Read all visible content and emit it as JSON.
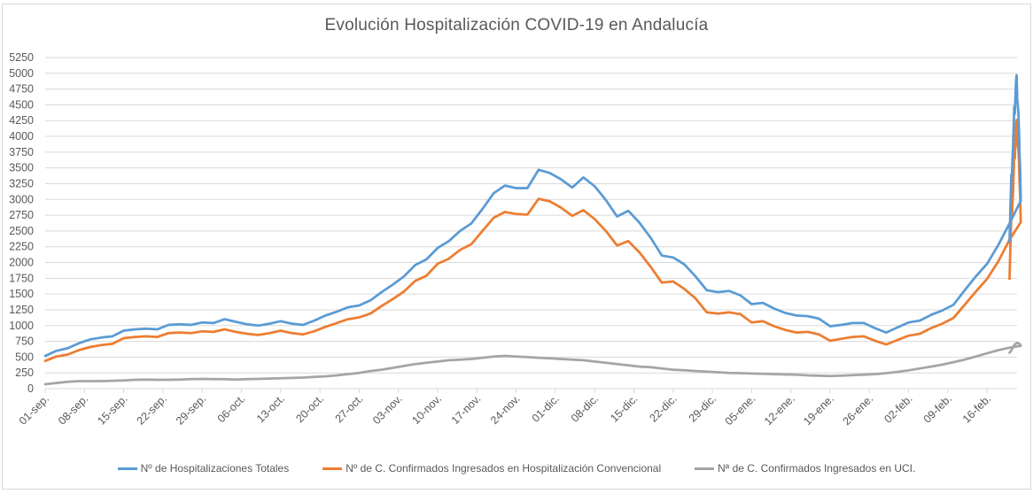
{
  "chart_data": {
    "type": "line",
    "title": "Evolución Hospitalización COVID-19 en Andalucía",
    "xlabel": "",
    "ylabel": "",
    "ylim": [
      0,
      5250
    ],
    "yticks": [
      0,
      250,
      500,
      750,
      1000,
      1250,
      1500,
      1750,
      2000,
      2250,
      2500,
      2750,
      3000,
      3250,
      3500,
      3750,
      4000,
      4250,
      4500,
      4750,
      5000,
      5250
    ],
    "grid": true,
    "legend_position": "bottom",
    "x_start": "01-sep.",
    "x_step_days": 2,
    "x_tick_labels": [
      "01-sep.",
      "08-sep.",
      "15-sep.",
      "22-sep.",
      "29-sep.",
      "06-oct.",
      "13-oct.",
      "20-oct.",
      "27-oct.",
      "03-nov.",
      "10-nov.",
      "17-nov.",
      "24-nov.",
      "01-dic.",
      "08-dic.",
      "15-dic.",
      "22-dic.",
      "29-dic.",
      "05-ene.",
      "12-ene.",
      "19-ene.",
      "26-ene.",
      "02-feb.",
      "09-feb.",
      "16-feb."
    ],
    "total_days": 173,
    "series": [
      {
        "name": "Nº de Hospitalizaciones Totales",
        "color": "#5b9bd5",
        "values": [
          520,
          600,
          640,
          720,
          780,
          810,
          830,
          920,
          940,
          950,
          940,
          1010,
          1020,
          1010,
          1050,
          1040,
          1100,
          1060,
          1020,
          1000,
          1030,
          1070,
          1030,
          1010,
          1080,
          1160,
          1220,
          1290,
          1320,
          1400,
          1530,
          1650,
          1780,
          1960,
          2050,
          2230,
          2340,
          2500,
          2620,
          2850,
          3100,
          3220,
          3180,
          3180,
          3470,
          3420,
          3320,
          3190,
          3350,
          3210,
          2990,
          2730,
          2820,
          2630,
          2390,
          2110,
          2080,
          1970,
          1780,
          1560,
          1530,
          1550,
          1480,
          1340,
          1360,
          1270,
          1200,
          1160,
          1150,
          1110,
          990,
          1010,
          1040,
          1040,
          960,
          890,
          970,
          1050,
          1080,
          1170,
          1240,
          1330,
          1560,
          1780,
          1980,
          2280,
          2620,
          2980
        ],
        "values_tail": [
          3500,
          3720,
          4090,
          4380,
          4500,
          4590,
          4970,
          4870,
          4650,
          4360,
          4470,
          4150,
          3850,
          3620,
          3380,
          3390,
          3000,
          2700,
          2330
        ]
      },
      {
        "name": "Nº de C. Confirmados Ingresados en Hospitalización Convencional",
        "color": "#ed7d31",
        "values": [
          440,
          510,
          540,
          610,
          660,
          690,
          710,
          800,
          820,
          830,
          820,
          880,
          890,
          880,
          910,
          900,
          940,
          900,
          870,
          850,
          880,
          920,
          880,
          860,
          910,
          980,
          1040,
          1100,
          1130,
          1190,
          1310,
          1420,
          1540,
          1710,
          1790,
          1980,
          2060,
          2200,
          2290,
          2500,
          2710,
          2800,
          2770,
          2760,
          3010,
          2970,
          2870,
          2740,
          2830,
          2690,
          2500,
          2270,
          2340,
          2160,
          1930,
          1680,
          1700,
          1580,
          1430,
          1210,
          1190,
          1210,
          1180,
          1050,
          1070,
          990,
          930,
          890,
          900,
          860,
          760,
          790,
          820,
          830,
          760,
          700,
          770,
          840,
          870,
          960,
          1030,
          1120,
          1330,
          1540,
          1740,
          2020,
          2360,
          2640
        ],
        "values_tail": [
          3050,
          3270,
          3580,
          3790,
          3840,
          3900,
          4260,
          4170,
          3990,
          3650,
          3770,
          3420,
          3140,
          2930,
          2700,
          2720,
          2420,
          2110,
          1740
        ]
      },
      {
        "name": "Nª de C. Confirmados Ingresados en UCI.",
        "color": "#a5a5a5",
        "values": [
          70,
          90,
          110,
          120,
          120,
          120,
          125,
          130,
          140,
          145,
          140,
          140,
          145,
          150,
          155,
          150,
          150,
          145,
          150,
          155,
          160,
          165,
          170,
          175,
          185,
          195,
          210,
          230,
          250,
          280,
          300,
          330,
          360,
          390,
          410,
          430,
          450,
          460,
          470,
          490,
          510,
          520,
          510,
          500,
          490,
          480,
          470,
          460,
          450,
          430,
          410,
          390,
          370,
          350,
          340,
          320,
          300,
          290,
          280,
          270,
          260,
          250,
          245,
          240,
          235,
          230,
          225,
          220,
          210,
          205,
          200,
          205,
          215,
          220,
          230,
          245,
          265,
          290,
          320,
          350,
          380,
          420,
          460,
          510,
          560,
          610,
          650,
          680
        ],
        "values_tail": [
          700,
          710,
          715,
          720,
          730,
          725,
          720,
          715,
          710,
          700,
          690,
          670,
          650,
          640,
          630,
          610,
          590,
          580,
          570
        ]
      }
    ]
  }
}
